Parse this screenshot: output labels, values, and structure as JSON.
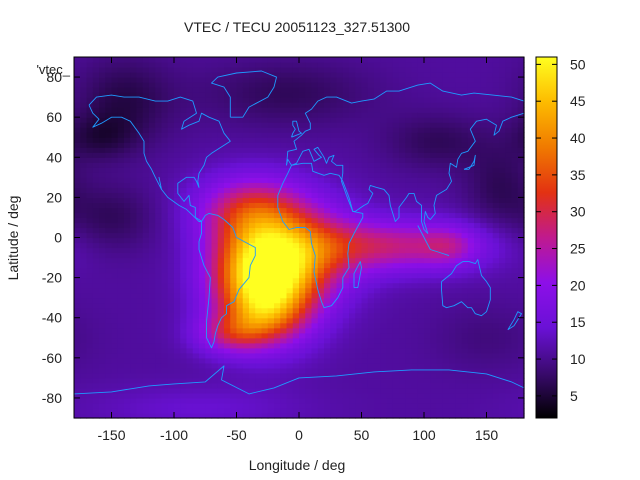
{
  "chart_data": {
    "type": "heatmap",
    "title": "VTEC / TECU 20051123_327.51300",
    "xlabel": "Longitude / deg",
    "ylabel": "Latitude / deg",
    "key_label": "'vtec_",
    "xlim": [
      -180,
      180
    ],
    "ylim": [
      -90,
      90
    ],
    "x_ticks": [
      -150,
      -100,
      -50,
      0,
      50,
      100,
      150
    ],
    "y_ticks": [
      -80,
      -60,
      -40,
      -20,
      0,
      20,
      40,
      60,
      80
    ],
    "colorbar": {
      "range": [
        2,
        51
      ],
      "ticks": [
        5,
        10,
        15,
        20,
        25,
        30,
        35,
        40,
        45,
        50
      ],
      "palette": [
        "#000000",
        "#3a0a6e",
        "#6a11d6",
        "#8d0fe8",
        "#c01a8e",
        "#e33212",
        "#f07a00",
        "#fdbb00",
        "#ffff20"
      ]
    },
    "background_level": 11,
    "features": [
      {
        "lon": -25,
        "lat": -22,
        "slon": 28,
        "slat": 18,
        "amp": 36
      },
      {
        "lon": -42,
        "lat": -12,
        "slon": 24,
        "slat": 16,
        "amp": 8
      },
      {
        "lon": -38,
        "lat": 14,
        "slon": 30,
        "slat": 12,
        "amp": 17
      },
      {
        "lon": 5,
        "lat": -6,
        "slon": 32,
        "slat": 16,
        "amp": 15
      },
      {
        "lon": 75,
        "lat": -4,
        "slon": 50,
        "slat": 9,
        "amp": 15
      },
      {
        "lon": 120,
        "lat": -4,
        "slon": 16,
        "slat": 7,
        "amp": 6
      },
      {
        "lon": -55,
        "lat": -48,
        "slon": 20,
        "slat": 7,
        "amp": 11
      },
      {
        "lon": -30,
        "lat": -40,
        "slon": 22,
        "slat": 9,
        "amp": 8
      },
      {
        "lon": -140,
        "lat": 68,
        "slon": 28,
        "slat": 16,
        "amp": -5
      },
      {
        "lon": -10,
        "lat": 72,
        "slon": 50,
        "slat": 12,
        "amp": -4
      },
      {
        "lon": -160,
        "lat": 50,
        "slon": 20,
        "slat": 8,
        "amp": -4
      },
      {
        "lon": 110,
        "lat": 48,
        "slon": 30,
        "slat": 10,
        "amp": -4
      },
      {
        "lon": 160,
        "lat": 25,
        "slon": 20,
        "slat": 15,
        "amp": -4
      },
      {
        "lon": -150,
        "lat": 10,
        "slon": 25,
        "slat": 12,
        "amp": -4
      },
      {
        "lon": 150,
        "lat": -50,
        "slon": 30,
        "slat": 12,
        "amp": -2
      },
      {
        "lon": -80,
        "lat": -85,
        "slon": 60,
        "slat": 8,
        "amp": 3
      }
    ],
    "coastlines": [
      [
        [
          -168,
          66
        ],
        [
          -162,
          70
        ],
        [
          -150,
          71
        ],
        [
          -140,
          70
        ],
        [
          -128,
          70
        ],
        [
          -115,
          68
        ],
        [
          -105,
          68
        ],
        [
          -95,
          70
        ],
        [
          -85,
          68
        ],
        [
          -82,
          62
        ],
        [
          -92,
          58
        ],
        [
          -94,
          54
        ],
        [
          -88,
          56
        ],
        [
          -80,
          58
        ],
        [
          -78,
          62
        ],
        [
          -72,
          60
        ],
        [
          -64,
          58
        ],
        [
          -60,
          52
        ],
        [
          -55,
          48
        ],
        [
          -65,
          44
        ],
        [
          -70,
          42
        ],
        [
          -74,
          40
        ],
        [
          -76,
          36
        ],
        [
          -80,
          32
        ],
        [
          -81,
          28
        ],
        [
          -80,
          25
        ],
        [
          -82,
          28
        ],
        [
          -84,
          30
        ],
        [
          -90,
          30
        ],
        [
          -97,
          27
        ],
        [
          -97,
          22
        ],
        [
          -92,
          18
        ],
        [
          -88,
          21
        ],
        [
          -87,
          16
        ],
        [
          -83,
          15
        ],
        [
          -83,
          10
        ],
        [
          -80,
          9
        ],
        [
          -78,
          8
        ],
        [
          -80,
          8
        ],
        [
          -85,
          11
        ],
        [
          -90,
          14
        ],
        [
          -96,
          16
        ],
        [
          -105,
          20
        ],
        [
          -110,
          24
        ],
        [
          -112,
          30
        ],
        [
          -110,
          24
        ],
        [
          -115,
          30
        ],
        [
          -118,
          34
        ],
        [
          -122,
          38
        ],
        [
          -124,
          42
        ],
        [
          -124,
          48
        ],
        [
          -128,
          52
        ],
        [
          -135,
          58
        ],
        [
          -142,
          60
        ],
        [
          -150,
          60
        ],
        [
          -158,
          57
        ],
        [
          -165,
          55
        ],
        [
          -160,
          59
        ],
        [
          -165,
          62
        ],
        [
          -168,
          66
        ]
      ],
      [
        [
          -78,
          8
        ],
        [
          -75,
          11
        ],
        [
          -72,
          12
        ],
        [
          -65,
          11
        ],
        [
          -60,
          9
        ],
        [
          -53,
          5
        ],
        [
          -50,
          0
        ],
        [
          -44,
          -2
        ],
        [
          -35,
          -5
        ],
        [
          -35,
          -9
        ],
        [
          -39,
          -14
        ],
        [
          -40,
          -20
        ],
        [
          -44,
          -23
        ],
        [
          -48,
          -26
        ],
        [
          -52,
          -32
        ],
        [
          -58,
          -34
        ],
        [
          -58,
          -38
        ],
        [
          -62,
          -40
        ],
        [
          -65,
          -44
        ],
        [
          -67,
          -48
        ],
        [
          -68,
          -52
        ],
        [
          -70,
          -55
        ],
        [
          -74,
          -50
        ],
        [
          -74,
          -42
        ],
        [
          -72,
          -30
        ],
        [
          -71,
          -20
        ],
        [
          -76,
          -14
        ],
        [
          -80,
          -6
        ],
        [
          -80,
          -2
        ],
        [
          -78,
          2
        ],
        [
          -78,
          8
        ]
      ],
      [
        [
          -17,
          15
        ],
        [
          -17,
          21
        ],
        [
          -13,
          27
        ],
        [
          -9,
          32
        ],
        [
          -6,
          36
        ],
        [
          3,
          37
        ],
        [
          10,
          37
        ],
        [
          11,
          33
        ],
        [
          20,
          31
        ],
        [
          25,
          32
        ],
        [
          32,
          31
        ],
        [
          35,
          28
        ],
        [
          40,
          20
        ],
        [
          43,
          13
        ],
        [
          51,
          12
        ],
        [
          51,
          10
        ],
        [
          44,
          2
        ],
        [
          40,
          -3
        ],
        [
          39,
          -8
        ],
        [
          40,
          -15
        ],
        [
          35,
          -20
        ],
        [
          35,
          -25
        ],
        [
          31,
          -30
        ],
        [
          26,
          -34
        ],
        [
          20,
          -35
        ],
        [
          18,
          -32
        ],
        [
          15,
          -26
        ],
        [
          12,
          -17
        ],
        [
          13,
          -9
        ],
        [
          10,
          -3
        ],
        [
          9,
          3
        ],
        [
          5,
          5
        ],
        [
          -2,
          5
        ],
        [
          -8,
          4
        ],
        [
          -13,
          8
        ],
        [
          -17,
          15
        ]
      ],
      [
        [
          -10,
          36
        ],
        [
          -9,
          43
        ],
        [
          -2,
          44
        ],
        [
          -4,
          48
        ],
        [
          2,
          51
        ],
        [
          5,
          53
        ],
        [
          9,
          54
        ],
        [
          9,
          57
        ],
        [
          5,
          62
        ],
        [
          10,
          64
        ],
        [
          15,
          68
        ],
        [
          22,
          70
        ],
        [
          30,
          70
        ],
        [
          42,
          67
        ],
        [
          50,
          68
        ],
        [
          60,
          69
        ],
        [
          70,
          73
        ],
        [
          80,
          73
        ],
        [
          95,
          76
        ],
        [
          105,
          77
        ],
        [
          115,
          73
        ],
        [
          130,
          71
        ],
        [
          140,
          72
        ],
        [
          155,
          71
        ],
        [
          170,
          70
        ],
        [
          180,
          68
        ]
      ],
      [
        [
          180,
          62
        ],
        [
          170,
          60
        ],
        [
          163,
          58
        ],
        [
          160,
          53
        ],
        [
          156,
          51
        ],
        [
          158,
          56
        ],
        [
          150,
          59
        ],
        [
          142,
          58
        ],
        [
          137,
          54
        ],
        [
          141,
          48
        ],
        [
          135,
          43
        ],
        [
          130,
          42
        ],
        [
          127,
          39
        ],
        [
          126,
          35
        ],
        [
          121,
          37
        ],
        [
          120,
          32
        ],
        [
          122,
          28
        ],
        [
          118,
          24
        ],
        [
          110,
          21
        ],
        [
          108,
          16
        ],
        [
          109,
          12
        ],
        [
          105,
          9
        ],
        [
          103,
          10
        ],
        [
          101,
          13
        ],
        [
          100,
          8
        ],
        [
          103,
          2
        ],
        [
          100,
          4
        ],
        [
          98,
          8
        ],
        [
          98,
          16
        ],
        [
          94,
          18
        ],
        [
          92,
          22
        ],
        [
          88,
          22
        ],
        [
          86,
          20
        ],
        [
          80,
          15
        ],
        [
          80,
          10
        ],
        [
          77,
          8
        ],
        [
          73,
          16
        ],
        [
          72,
          21
        ],
        [
          68,
          24
        ],
        [
          62,
          25
        ],
        [
          57,
          26
        ],
        [
          56,
          24
        ],
        [
          59,
          22
        ],
        [
          55,
          17
        ],
        [
          52,
          16
        ],
        [
          45,
          13
        ],
        [
          43,
          13
        ],
        [
          38,
          21
        ],
        [
          34,
          28
        ],
        [
          35,
          32
        ],
        [
          35,
          36
        ],
        [
          30,
          36
        ],
        [
          26,
          38
        ],
        [
          28,
          41
        ],
        [
          24,
          40
        ],
        [
          22,
          37
        ],
        [
          20,
          40
        ],
        [
          15,
          45
        ],
        [
          12,
          44
        ],
        [
          16,
          41
        ],
        [
          18,
          40
        ],
        [
          12,
          38
        ],
        [
          8,
          44
        ],
        [
          3,
          43
        ],
        [
          -2,
          37
        ],
        [
          -6,
          36
        ],
        [
          -9,
          39
        ],
        [
          -10,
          36
        ]
      ],
      [
        [
          -6,
          50
        ],
        [
          -5,
          52
        ],
        [
          -3,
          54
        ],
        [
          -5,
          56
        ],
        [
          -5,
          58
        ],
        [
          -2,
          58
        ],
        [
          0,
          53
        ],
        [
          2,
          52
        ],
        [
          -6,
          50
        ]
      ],
      [
        [
          114,
          -22
        ],
        [
          114,
          -26
        ],
        [
          115,
          -34
        ],
        [
          118,
          -35
        ],
        [
          124,
          -34
        ],
        [
          130,
          -32
        ],
        [
          135,
          -35
        ],
        [
          138,
          -35
        ],
        [
          141,
          -38
        ],
        [
          146,
          -39
        ],
        [
          150,
          -37
        ],
        [
          153,
          -31
        ],
        [
          153,
          -25
        ],
        [
          150,
          -22
        ],
        [
          146,
          -19
        ],
        [
          143,
          -11
        ],
        [
          141,
          -13
        ],
        [
          136,
          -12
        ],
        [
          131,
          -12
        ],
        [
          126,
          -14
        ],
        [
          122,
          -18
        ],
        [
          118,
          -20
        ],
        [
          114,
          -22
        ]
      ],
      [
        [
          -55,
          60
        ],
        [
          -45,
          60
        ],
        [
          -40,
          65
        ],
        [
          -25,
          70
        ],
        [
          -20,
          75
        ],
        [
          -18,
          80
        ],
        [
          -30,
          83
        ],
        [
          -50,
          82
        ],
        [
          -65,
          80
        ],
        [
          -70,
          77
        ],
        [
          -60,
          75
        ],
        [
          -55,
          70
        ],
        [
          -55,
          60
        ]
      ],
      [
        [
          95,
          6
        ],
        [
          105,
          -6
        ],
        [
          115,
          -8
        ],
        [
          120,
          -9
        ]
      ],
      [
        [
          -180,
          -78
        ],
        [
          -150,
          -77
        ],
        [
          -120,
          -74
        ],
        [
          -100,
          -73
        ],
        [
          -75,
          -72
        ],
        [
          -60,
          -64
        ],
        [
          -62,
          -71
        ],
        [
          -40,
          -78
        ],
        [
          -20,
          -75
        ],
        [
          0,
          -70
        ],
        [
          30,
          -69
        ],
        [
          60,
          -67
        ],
        [
          90,
          -66
        ],
        [
          120,
          -66
        ],
        [
          150,
          -68
        ],
        [
          170,
          -72
        ],
        [
          180,
          -75
        ]
      ],
      [
        [
          132,
          34
        ],
        [
          136,
          35
        ],
        [
          140,
          36
        ],
        [
          141,
          41
        ],
        [
          140,
          38
        ],
        [
          136,
          34
        ],
        [
          132,
          34
        ]
      ],
      [
        [
          167,
          -46
        ],
        [
          172,
          -41
        ],
        [
          175,
          -37
        ],
        [
          178,
          -38
        ],
        [
          172,
          -44
        ],
        [
          167,
          -46
        ]
      ],
      [
        [
          44,
          -25
        ],
        [
          47,
          -25
        ],
        [
          50,
          -15
        ],
        [
          49,
          -12
        ],
        [
          44,
          -18
        ],
        [
          44,
          -25
        ]
      ]
    ]
  }
}
